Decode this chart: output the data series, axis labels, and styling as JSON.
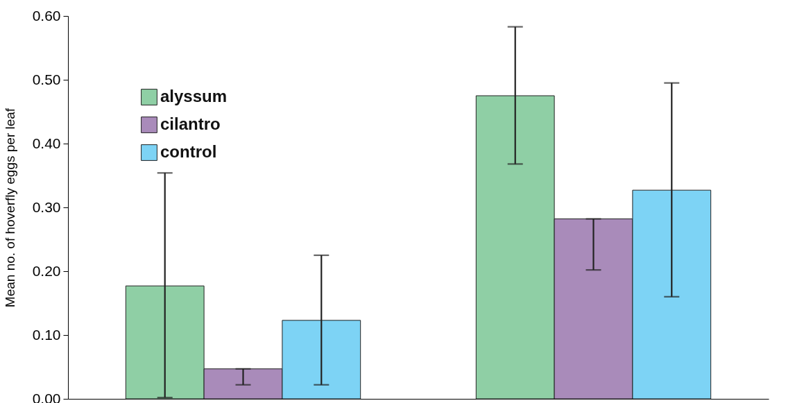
{
  "chart_data": {
    "type": "bar",
    "ylabel": "Mean no. of hoverfly eggs per leaf",
    "categories": [
      null,
      null
    ],
    "series": [
      {
        "name": "alyssum",
        "color": "#8fcfa5",
        "values": [
          0.177,
          0.475
        ],
        "errors": [
          [
            0.002,
            0.354
          ],
          [
            0.368,
            0.583
          ]
        ]
      },
      {
        "name": "cilantro",
        "color": "#a98bba",
        "values": [
          0.047,
          0.282
        ],
        "errors": [
          [
            0.022,
            0.047
          ],
          [
            0.202,
            0.282
          ]
        ]
      },
      {
        "name": "control",
        "color": "#7dd3f5",
        "values": [
          0.123,
          0.327
        ],
        "errors": [
          [
            0.022,
            0.225
          ],
          [
            0.16,
            0.495
          ]
        ]
      }
    ],
    "ylim": [
      0,
      0.6
    ],
    "yticks": [
      {
        "value": 0,
        "label": "0.00"
      },
      {
        "value": 0.1,
        "label": "0.10"
      },
      {
        "value": 0.2,
        "label": "0.20"
      },
      {
        "value": 0.3,
        "label": "0.30"
      },
      {
        "value": 0.4,
        "label": "0.40"
      },
      {
        "value": 0.5,
        "label": "0.50"
      },
      {
        "value": 0.6,
        "label": "0.60"
      }
    ],
    "grid": false,
    "legend": "top left",
    "tick_labels": "y"
  }
}
